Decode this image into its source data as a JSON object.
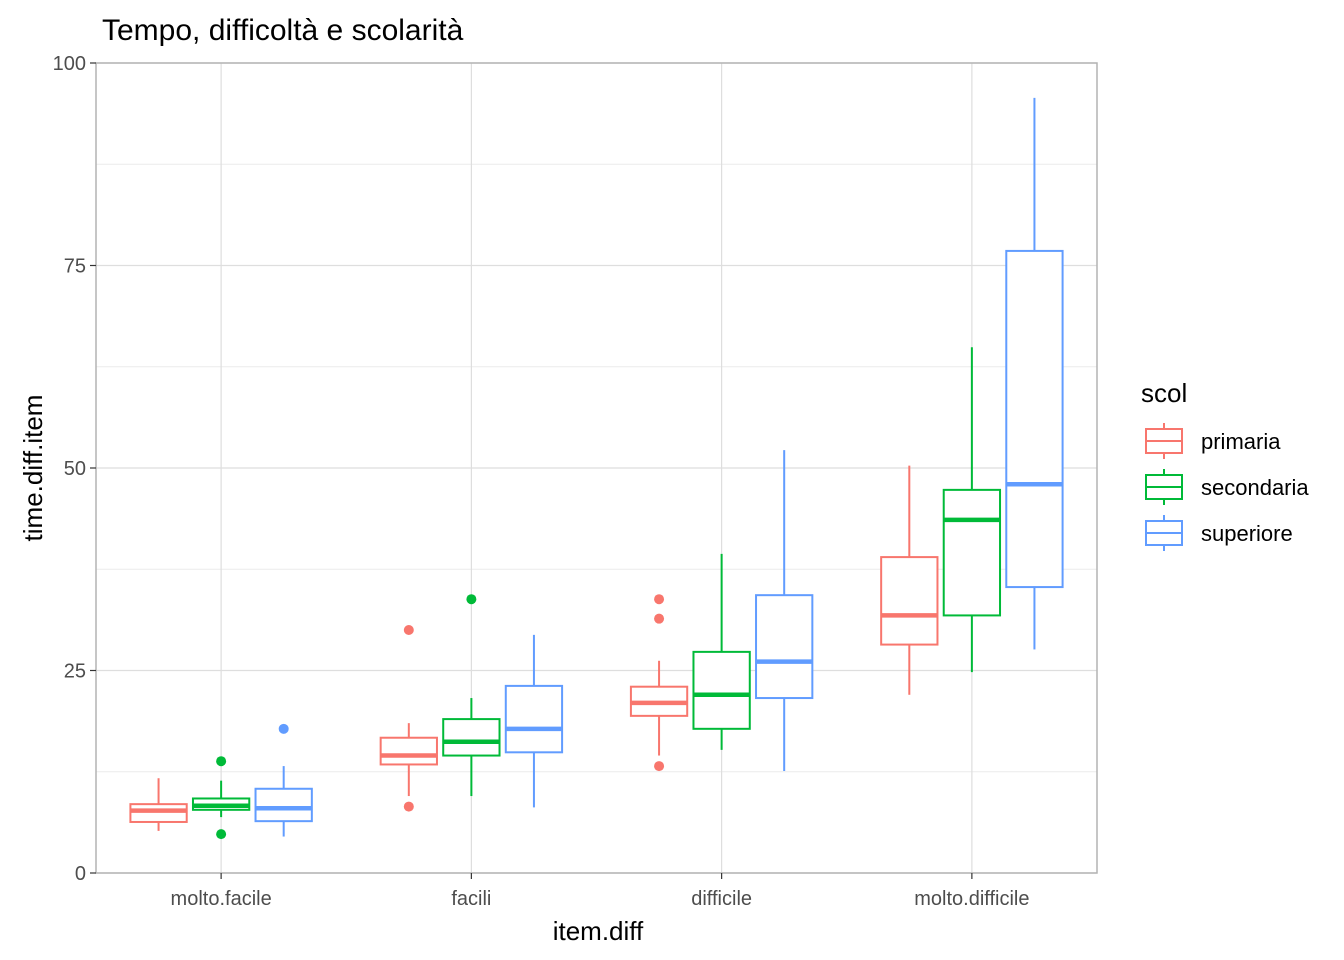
{
  "chart_data": {
    "type": "box",
    "title": "Tempo, difficoltà e scolarità",
    "xlabel": "item.diff",
    "ylabel": "time.diff.item",
    "ylim": [
      0,
      100
    ],
    "y_ticks": [
      0,
      25,
      50,
      75,
      100
    ],
    "categories": [
      "molto.facile",
      "facili",
      "difficile",
      "molto.difficile"
    ],
    "legend": {
      "title": "scol",
      "placement": "right"
    },
    "grid": true,
    "series": [
      {
        "name": "primaria",
        "color": "#F8766D",
        "boxes": [
          {
            "lower_whisker": 5.2,
            "q1": 6.3,
            "median": 7.7,
            "q3": 8.5,
            "upper_whisker": 11.7,
            "outliers": []
          },
          {
            "lower_whisker": 9.5,
            "q1": 13.4,
            "median": 14.5,
            "q3": 16.7,
            "upper_whisker": 18.5,
            "outliers": [
              8.2,
              30.0
            ]
          },
          {
            "lower_whisker": 14.5,
            "q1": 19.4,
            "median": 21.0,
            "q3": 23.0,
            "upper_whisker": 26.2,
            "outliers": [
              13.2,
              31.4,
              33.8
            ]
          },
          {
            "lower_whisker": 22.0,
            "q1": 28.2,
            "median": 31.8,
            "q3": 39.0,
            "upper_whisker": 50.3,
            "outliers": []
          }
        ]
      },
      {
        "name": "secondaria",
        "color": "#00BA38",
        "boxes": [
          {
            "lower_whisker": 6.9,
            "q1": 7.8,
            "median": 8.3,
            "q3": 9.2,
            "upper_whisker": 11.4,
            "outliers": [
              4.8,
              13.8
            ]
          },
          {
            "lower_whisker": 9.5,
            "q1": 14.5,
            "median": 16.2,
            "q3": 19.0,
            "upper_whisker": 21.6,
            "outliers": [
              33.8
            ]
          },
          {
            "lower_whisker": 15.2,
            "q1": 17.8,
            "median": 22.0,
            "q3": 27.3,
            "upper_whisker": 39.4,
            "outliers": []
          },
          {
            "lower_whisker": 24.8,
            "q1": 31.8,
            "median": 43.6,
            "q3": 47.3,
            "upper_whisker": 64.9,
            "outliers": []
          }
        ]
      },
      {
        "name": "superiore",
        "color": "#619CFF",
        "boxes": [
          {
            "lower_whisker": 4.5,
            "q1": 6.4,
            "median": 8.0,
            "q3": 10.4,
            "upper_whisker": 13.2,
            "outliers": [
              17.8
            ]
          },
          {
            "lower_whisker": 8.1,
            "q1": 14.9,
            "median": 17.8,
            "q3": 23.1,
            "upper_whisker": 29.4,
            "outliers": []
          },
          {
            "lower_whisker": 12.6,
            "q1": 21.6,
            "median": 26.1,
            "q3": 34.3,
            "upper_whisker": 52.2,
            "outliers": []
          },
          {
            "lower_whisker": 27.6,
            "q1": 35.3,
            "median": 48.0,
            "q3": 76.8,
            "upper_whisker": 95.7,
            "outliers": []
          }
        ]
      }
    ]
  }
}
